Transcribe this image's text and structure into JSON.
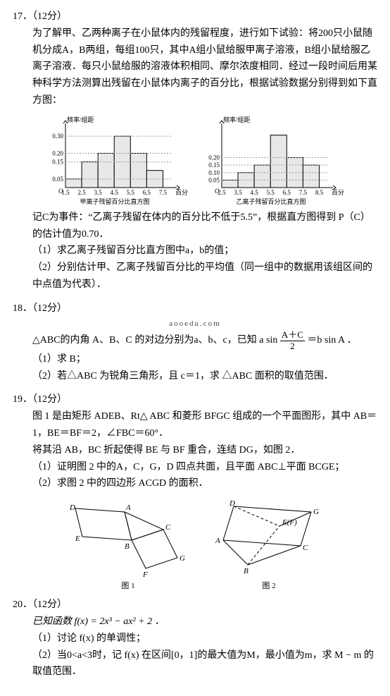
{
  "q17": {
    "num": "17．（12分）",
    "p1": "为了解甲、乙两种离子在小鼠体内的残留程度，进行如下试验：将200只小鼠随机分成A，B两组，每组100只，其中A组小鼠给服甲离子溶液，B组小鼠给服乙离子溶液．每只小鼠给服的溶液体积相同、摩尔浓度相同．经过一段时间后用某种科学方法测算出残留在小鼠体内离子的百分比，根据试验数据分别得到如下直方图：",
    "chart1": {
      "ylabel": "频率/组距",
      "xlabel": "百分比",
      "caption": "甲离子残留百分比直方图",
      "ticks_x": [
        "1.5",
        "2.5",
        "3.5",
        "4.5",
        "5.5",
        "6.5",
        "7.5"
      ],
      "ticks_y": [
        "0.05",
        "0.15",
        "0.20",
        "0.30"
      ],
      "bars": [
        0.05,
        0.15,
        0.2,
        0.3,
        0.2,
        0.1
      ],
      "ymax": 0.35,
      "bar_fill": "#e8e8e8",
      "bar_stroke": "#000000",
      "axis_color": "#000000",
      "font_size": 9
    },
    "chart2": {
      "ylabel": "频率/组距",
      "xlabel": "百分比",
      "caption": "乙离子残留百分比直方图",
      "ticks_x": [
        "2.5",
        "3.5",
        "4.5",
        "5.5",
        "6.5",
        "7.5",
        "8.5"
      ],
      "ticks_y": [
        "0.05",
        "0.10",
        "0.15",
        "0.20"
      ],
      "bars": [
        0.05,
        0.1,
        0.15,
        0.35,
        0.2,
        0.15
      ],
      "ymax": 0.4,
      "bar_fill": "#e8e8e8",
      "bar_stroke": "#000000",
      "axis_color": "#000000",
      "font_size": 9
    },
    "p2_a": "记C为事件：“乙离子残留在体内的百分比不低于5.5”，根据直方图得到",
    "p2_b": "P（C）的估计值为0.70．",
    "s1": "（1）求乙离子残留百分比直方图中a，b的值；",
    "s2": "（2）分别估计甲、乙离子残留百分比的平均值（同一组中的数据用该组区间的中点值为代表）．"
  },
  "q18": {
    "num": "18．（12分）",
    "wm": "aooedu.com",
    "p1a": "△ABC的内角 A、B、C 的对边分别为a、b、c，已知 a sin",
    "frac_n": "A＋C",
    "frac_d": "2",
    "p1b": "＝b sin A ．",
    "s1": "（1）求 B；",
    "s2": "（2）若△ABC 为锐角三角形，且 c＝1，求 △ABC 面积的取值范围．"
  },
  "q19": {
    "num": "19．（12分）",
    "p1": "图 1 是由矩形 ADEB、Rt△ ABC 和菱形 BFGC 组成的一个平面图形，其中 AB＝1，BE＝BF＝2，∠FBC＝60°．",
    "p2": "将其沿 AB，BC 折起使得 BE 与 BF 重合，连结 DG，如图 2．",
    "s1": "（1）证明图 2 中的A，C，G，D 四点共面，且平面 ABC⊥平面 BCGE；",
    "s2": "（2）求图 2 中的四边形 ACGD 的面积．",
    "fig1": {
      "caption": "图 1",
      "labels": {
        "A": "A",
        "B": "B",
        "C": "C",
        "D": "D",
        "E": "E",
        "F": "F",
        "G": "G"
      },
      "stroke": "#000000",
      "fill": "#ffffff",
      "font_size": 11
    },
    "fig2": {
      "caption": "图 2",
      "labels": {
        "A": "A",
        "B": "B",
        "C": "C",
        "D": "D",
        "EF": "E(F)",
        "G": "G"
      },
      "stroke": "#000000",
      "dash": "4,3",
      "font_size": 11
    }
  },
  "q20": {
    "num": "20．（12分）",
    "p1": "已知函数 f(x) = 2x³ − ax² + 2 ．",
    "s1": "（1）讨论 f(x) 的单调性；",
    "s2": "（2）当0<a<3时，记 f(x) 在区间[0，1]的最大值为M，最小值为m，求 M − m 的取值范围．"
  }
}
